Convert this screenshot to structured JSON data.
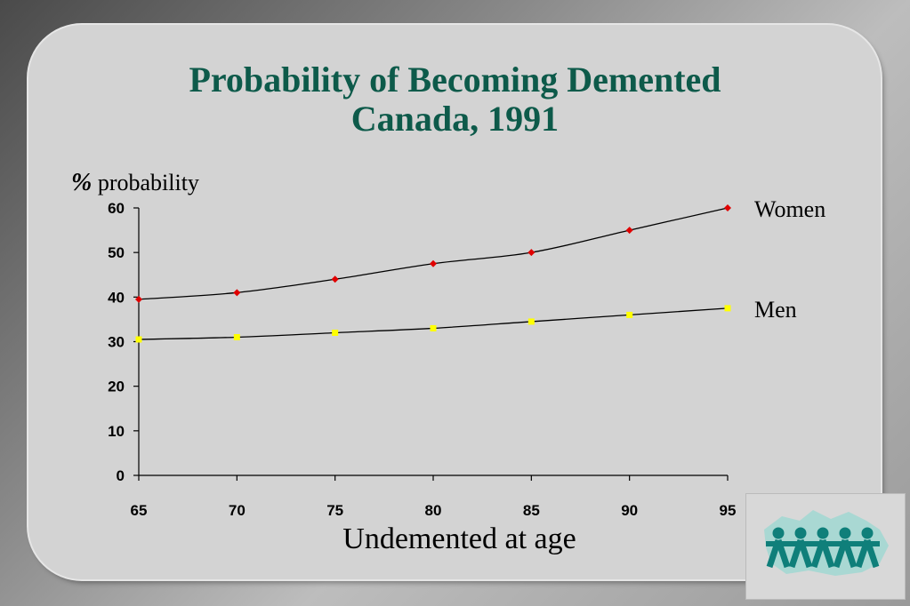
{
  "chart_data": {
    "type": "line",
    "title": "Probability of Becoming Demented",
    "subtitle": "Canada,  1991",
    "ylabel_symbol": "%",
    "ylabel": "probability",
    "xlabel": "Undemented at age",
    "x": [
      65,
      70,
      75,
      80,
      85,
      90,
      95
    ],
    "xlim": [
      65,
      95
    ],
    "ylim": [
      0,
      60
    ],
    "yticks": [
      0,
      10,
      20,
      30,
      40,
      50,
      60
    ],
    "grid": false,
    "series": [
      {
        "name": "Women",
        "values": [
          39.5,
          41,
          44,
          47.5,
          50,
          55,
          60
        ],
        "color": "#e00000",
        "marker": "diamond"
      },
      {
        "name": "Men",
        "values": [
          30.5,
          31,
          32,
          33,
          34.5,
          36,
          37.5
        ],
        "color": "#ffff00",
        "marker": "square"
      }
    ]
  },
  "colors": {
    "title": "#0d5a4a",
    "panel": "#d3d3d3",
    "logo_figures": "#0f7f7a",
    "logo_map": "#a9d8d3"
  },
  "logo": {
    "icon": "people-map-logo-icon"
  }
}
